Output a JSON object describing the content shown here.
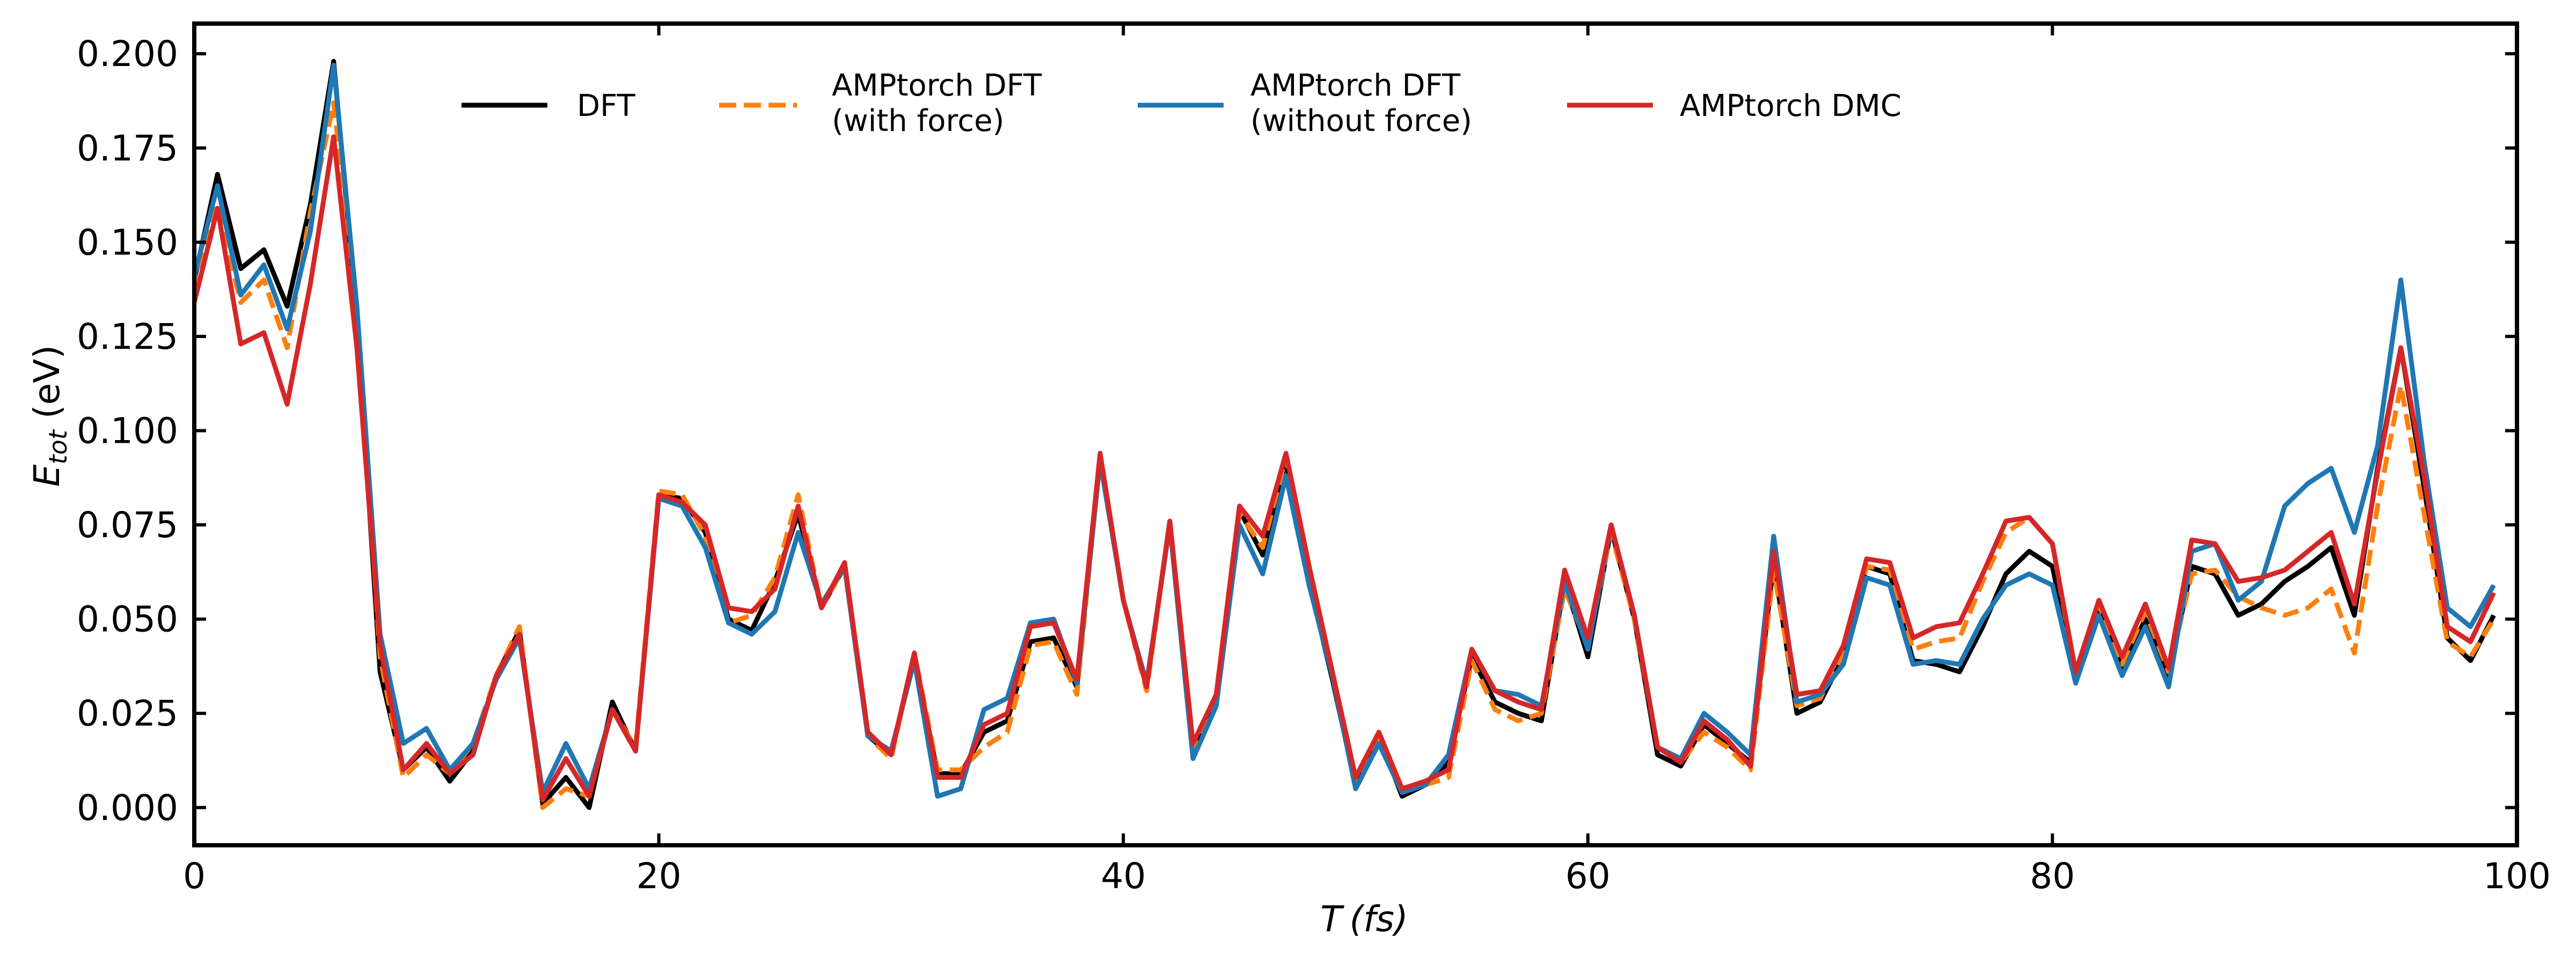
{
  "chart_data": {
    "type": "line",
    "xlabel": {
      "main": "T",
      "unit": "(fs)"
    },
    "ylabel": {
      "main": "E",
      "sub": "tot",
      "unit": " (eV)"
    },
    "xlim": [
      0,
      100
    ],
    "ylim": [
      -0.01,
      0.208
    ],
    "xticks": [
      0,
      20,
      40,
      60,
      80,
      100
    ],
    "yticks": [
      0.0,
      0.025,
      0.05,
      0.075,
      0.1,
      0.125,
      0.15,
      0.175,
      0.2
    ],
    "xtick_labels": [
      "0",
      "20",
      "40",
      "60",
      "80",
      "100"
    ],
    "ytick_labels": [
      "0.000",
      "0.025",
      "0.050",
      "0.075",
      "0.100",
      "0.125",
      "0.150",
      "0.175",
      "0.200"
    ],
    "grid": false,
    "legend_position": "top",
    "x": [
      0,
      1,
      2,
      3,
      4,
      5,
      6,
      7,
      8,
      9,
      10,
      11,
      12,
      13,
      14,
      15,
      16,
      17,
      18,
      19,
      20,
      21,
      22,
      23,
      24,
      25,
      26,
      27,
      28,
      29,
      30,
      31,
      32,
      33,
      34,
      35,
      36,
      37,
      38,
      39,
      40,
      41,
      42,
      43,
      44,
      45,
      46,
      47,
      48,
      49,
      50,
      51,
      52,
      53,
      54,
      55,
      56,
      57,
      58,
      59,
      60,
      61,
      62,
      63,
      64,
      65,
      66,
      67,
      68,
      69,
      70,
      71,
      72,
      73,
      74,
      75,
      76,
      77,
      78,
      79,
      80,
      81,
      82,
      83,
      84,
      85,
      86,
      87,
      88,
      89,
      90,
      91,
      92,
      93,
      94,
      95,
      96,
      97,
      98,
      99
    ],
    "series": [
      {
        "name": "DFT",
        "color": "#000000",
        "dash": "solid",
        "values": [
          0.14,
          0.168,
          0.143,
          0.148,
          0.133,
          0.16,
          0.198,
          0.13,
          0.036,
          0.01,
          0.016,
          0.007,
          0.015,
          0.035,
          0.047,
          0.001,
          0.008,
          0.0,
          0.028,
          0.015,
          0.083,
          0.082,
          0.073,
          0.05,
          0.047,
          0.06,
          0.078,
          0.053,
          0.064,
          0.019,
          0.014,
          0.04,
          0.009,
          0.009,
          0.02,
          0.023,
          0.044,
          0.045,
          0.032,
          0.093,
          0.055,
          0.032,
          0.076,
          0.016,
          0.029,
          0.079,
          0.067,
          0.092,
          0.06,
          0.034,
          0.006,
          0.019,
          0.003,
          0.006,
          0.012,
          0.04,
          0.028,
          0.025,
          0.023,
          0.06,
          0.04,
          0.074,
          0.05,
          0.014,
          0.011,
          0.022,
          0.017,
          0.012,
          0.065,
          0.025,
          0.028,
          0.04,
          0.064,
          0.062,
          0.039,
          0.038,
          0.036,
          0.048,
          0.062,
          0.068,
          0.064,
          0.034,
          0.053,
          0.037,
          0.05,
          0.035,
          0.064,
          0.062,
          0.051,
          0.054,
          0.06,
          0.064,
          0.069,
          0.051,
          0.09,
          0.122,
          0.085,
          0.045,
          0.039,
          0.051
        ]
      },
      {
        "name": "AMPtorch DFT\n(with force)",
        "color": "#ff7f0e",
        "dash": "dashed",
        "values": [
          0.137,
          0.16,
          0.134,
          0.14,
          0.122,
          0.158,
          0.187,
          0.132,
          0.04,
          0.008,
          0.014,
          0.009,
          0.017,
          0.035,
          0.048,
          0.0,
          0.005,
          0.003,
          0.026,
          0.016,
          0.084,
          0.083,
          0.072,
          0.049,
          0.051,
          0.061,
          0.083,
          0.053,
          0.064,
          0.019,
          0.013,
          0.041,
          0.01,
          0.01,
          0.016,
          0.02,
          0.043,
          0.044,
          0.03,
          0.093,
          0.055,
          0.031,
          0.076,
          0.016,
          0.029,
          0.078,
          0.069,
          0.093,
          0.062,
          0.035,
          0.006,
          0.018,
          0.004,
          0.006,
          0.008,
          0.039,
          0.026,
          0.023,
          0.025,
          0.058,
          0.043,
          0.073,
          0.05,
          0.016,
          0.012,
          0.02,
          0.016,
          0.01,
          0.063,
          0.027,
          0.029,
          0.041,
          0.064,
          0.063,
          0.042,
          0.044,
          0.045,
          0.06,
          0.073,
          0.077,
          0.07,
          0.035,
          0.054,
          0.038,
          0.052,
          0.036,
          0.062,
          0.063,
          0.056,
          0.053,
          0.051,
          0.053,
          0.058,
          0.041,
          0.08,
          0.112,
          0.078,
          0.044,
          0.04,
          0.05
        ]
      },
      {
        "name": "AMPtorch DFT\n(without force)",
        "color": "#1f77b4",
        "dash": "solid",
        "values": [
          0.141,
          0.165,
          0.136,
          0.144,
          0.127,
          0.153,
          0.197,
          0.133,
          0.046,
          0.017,
          0.021,
          0.01,
          0.017,
          0.034,
          0.045,
          0.004,
          0.017,
          0.005,
          0.026,
          0.015,
          0.082,
          0.08,
          0.069,
          0.049,
          0.046,
          0.052,
          0.073,
          0.054,
          0.064,
          0.019,
          0.015,
          0.039,
          0.003,
          0.005,
          0.026,
          0.029,
          0.049,
          0.05,
          0.033,
          0.092,
          0.055,
          0.033,
          0.075,
          0.013,
          0.027,
          0.075,
          0.062,
          0.088,
          0.059,
          0.035,
          0.005,
          0.017,
          0.004,
          0.006,
          0.014,
          0.042,
          0.031,
          0.03,
          0.027,
          0.06,
          0.042,
          0.075,
          0.051,
          0.016,
          0.013,
          0.025,
          0.02,
          0.014,
          0.072,
          0.028,
          0.03,
          0.038,
          0.061,
          0.059,
          0.038,
          0.039,
          0.038,
          0.05,
          0.059,
          0.062,
          0.059,
          0.033,
          0.051,
          0.035,
          0.048,
          0.032,
          0.068,
          0.07,
          0.055,
          0.06,
          0.08,
          0.086,
          0.09,
          0.073,
          0.096,
          0.14,
          0.092,
          0.053,
          0.048,
          0.059
        ]
      },
      {
        "name": "AMPtorch DMC",
        "color": "#d62728",
        "dash": "solid",
        "values": [
          0.134,
          0.159,
          0.123,
          0.126,
          0.107,
          0.139,
          0.178,
          0.122,
          0.043,
          0.01,
          0.017,
          0.009,
          0.014,
          0.035,
          0.046,
          0.002,
          0.013,
          0.003,
          0.026,
          0.015,
          0.083,
          0.081,
          0.075,
          0.053,
          0.052,
          0.058,
          0.08,
          0.053,
          0.065,
          0.02,
          0.014,
          0.041,
          0.008,
          0.008,
          0.022,
          0.025,
          0.048,
          0.049,
          0.034,
          0.094,
          0.055,
          0.032,
          0.076,
          0.017,
          0.03,
          0.08,
          0.072,
          0.094,
          0.064,
          0.036,
          0.008,
          0.02,
          0.005,
          0.007,
          0.01,
          0.042,
          0.031,
          0.028,
          0.026,
          0.063,
          0.045,
          0.075,
          0.051,
          0.016,
          0.012,
          0.023,
          0.018,
          0.011,
          0.068,
          0.03,
          0.031,
          0.043,
          0.066,
          0.065,
          0.045,
          0.048,
          0.049,
          0.062,
          0.076,
          0.077,
          0.07,
          0.036,
          0.055,
          0.04,
          0.054,
          0.037,
          0.071,
          0.07,
          0.06,
          0.061,
          0.063,
          0.068,
          0.073,
          0.054,
          0.089,
          0.122,
          0.088,
          0.048,
          0.044,
          0.057
        ]
      }
    ]
  }
}
